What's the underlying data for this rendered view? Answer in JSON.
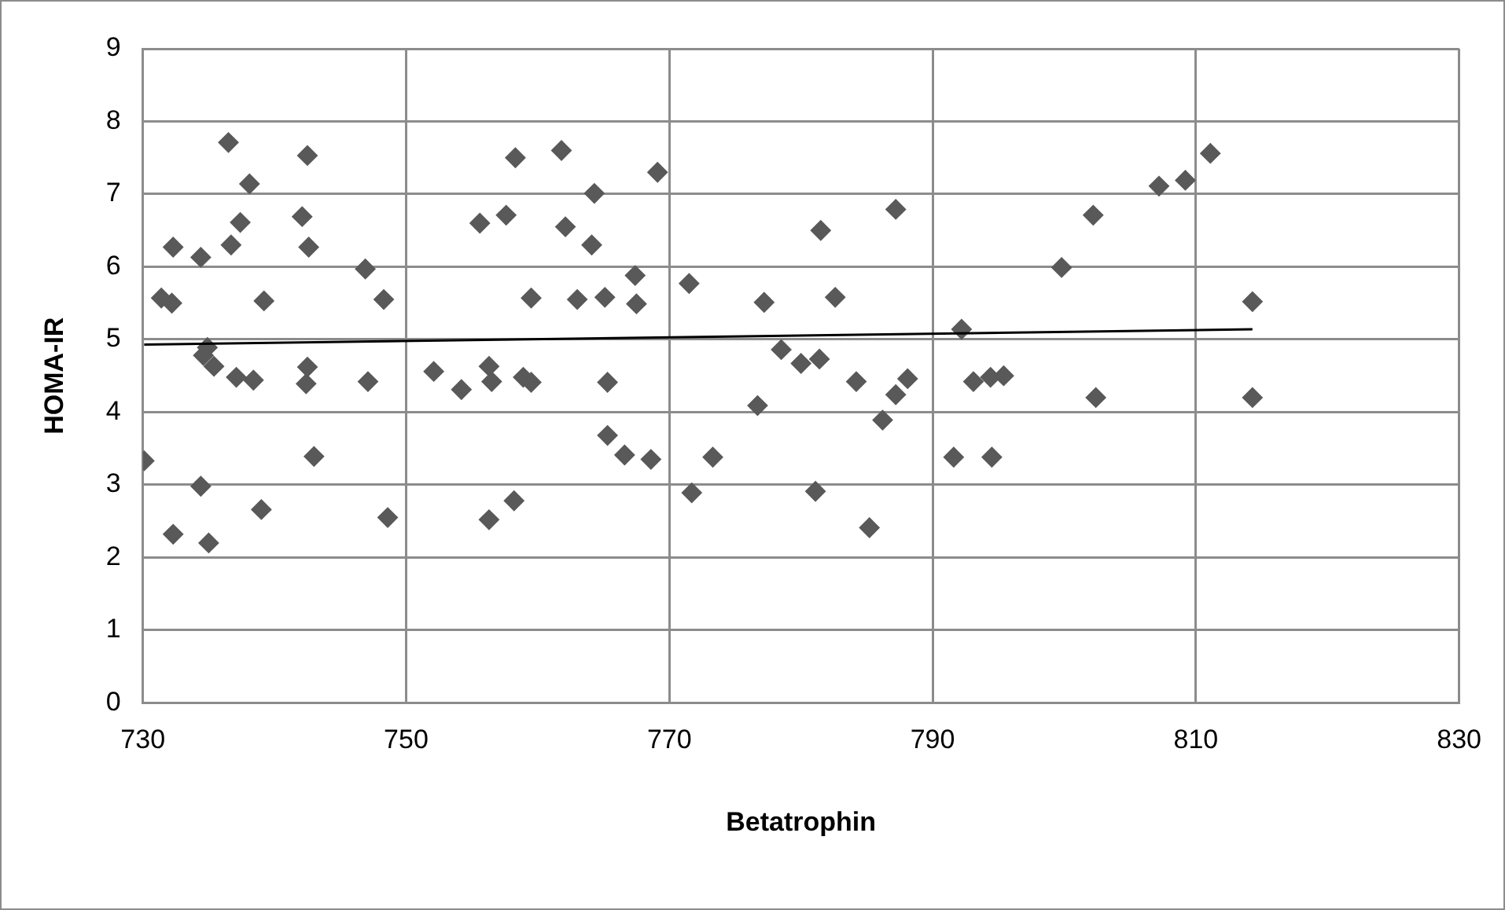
{
  "chart_data": {
    "type": "scatter",
    "xlabel": "Betatrophin",
    "ylabel": "HOMA-IR",
    "xlim": [
      730,
      830
    ],
    "xticks": [
      730,
      750,
      770,
      790,
      810,
      830
    ],
    "ylim": [
      0,
      9
    ],
    "yticks": [
      0,
      1,
      2,
      3,
      4,
      5,
      6,
      7,
      8,
      9
    ],
    "grid": true,
    "series": [
      {
        "type": "scatter",
        "marker": "diamond",
        "color": "#595959",
        "x": [
          736.5,
          742.5,
          738.1,
          737.4,
          742.1,
          732.3,
          734.4,
          736.7,
          742.6,
          746.9,
          731.4,
          732.2,
          739.2,
          748.3,
          734.9,
          734.6,
          735.4,
          737.1,
          738.4,
          742.5,
          742.4,
          747.1,
          730.1,
          743.0,
          734.4,
          739.0,
          748.6,
          732.3,
          735.0,
          758.3,
          761.8,
          755.6,
          757.6,
          762.1,
          759.5,
          752.1,
          754.2,
          756.3,
          756.5,
          758.9,
          759.5,
          756.3,
          758.2,
          769.1,
          764.3,
          764.1,
          763.0,
          765.1,
          767.4,
          767.5,
          771.5,
          777.2,
          781.5,
          787.2,
          782.6,
          792.2,
          765.3,
          778.5,
          780.0,
          781.4,
          784.2,
          787.2,
          788.1,
          786.2,
          776.7,
          793.1,
          794.4,
          795.4,
          765.3,
          766.6,
          768.6,
          773.3,
          771.7,
          781.1,
          785.2,
          791.6,
          794.5,
          811.1,
          807.2,
          809.2,
          802.2,
          799.8,
          814.3,
          802.4,
          814.3
        ],
        "values": [
          7.71,
          7.53,
          7.14,
          6.61,
          6.69,
          6.27,
          6.13,
          6.3,
          6.27,
          5.97,
          5.57,
          5.5,
          5.53,
          5.55,
          4.89,
          4.78,
          4.63,
          4.48,
          4.44,
          4.62,
          4.39,
          4.42,
          3.33,
          3.39,
          2.98,
          2.66,
          2.55,
          2.32,
          2.2,
          7.5,
          7.6,
          6.6,
          6.71,
          6.55,
          5.57,
          4.56,
          4.31,
          4.63,
          4.42,
          4.48,
          4.41,
          2.52,
          2.78,
          7.3,
          7.01,
          6.3,
          5.55,
          5.58,
          5.88,
          5.49,
          5.77,
          5.51,
          6.5,
          6.79,
          5.58,
          5.14,
          4.41,
          4.86,
          4.67,
          4.73,
          4.42,
          4.24,
          4.46,
          3.89,
          4.09,
          4.42,
          4.48,
          4.5,
          3.68,
          3.41,
          3.35,
          3.38,
          2.89,
          2.91,
          2.41,
          3.38,
          3.38,
          7.56,
          7.11,
          7.19,
          6.71,
          5.99,
          5.52,
          4.2,
          4.2
        ]
      },
      {
        "type": "line",
        "marker": "none",
        "color": "#000000",
        "x": [
          730.1,
          814.3
        ],
        "values": [
          4.93,
          5.14
        ]
      }
    ]
  }
}
